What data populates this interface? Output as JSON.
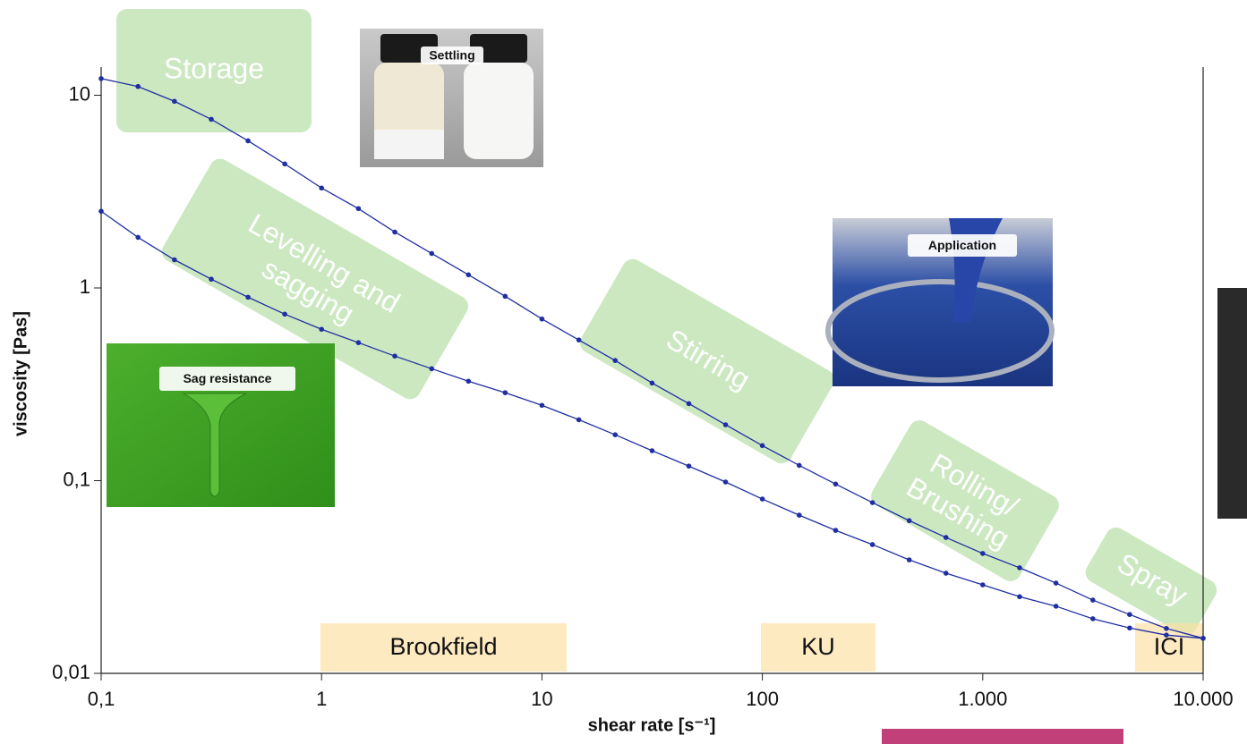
{
  "chart_data": {
    "type": "line",
    "x_label": "shear rate [s⁻¹]",
    "y_label": "viscosity  [Pas]",
    "log_x": true,
    "log_y": true,
    "markers": true,
    "x": [
      0.1,
      0.147,
      0.215,
      0.316,
      0.464,
      0.681,
      1,
      1.47,
      2.15,
      3.16,
      4.64,
      6.81,
      10,
      14.7,
      21.5,
      31.6,
      46.4,
      68.1,
      100,
      147,
      215,
      316,
      464,
      681,
      1000,
      1470,
      2150,
      3160,
      4640,
      6810,
      10000
    ],
    "series": [
      {
        "color": "#1f2fa3",
        "values": [
          12.2,
          11.1,
          9.3,
          7.5,
          5.8,
          4.4,
          3.3,
          2.58,
          1.95,
          1.51,
          1.17,
          0.905,
          0.69,
          0.537,
          0.42,
          0.321,
          0.251,
          0.195,
          0.152,
          0.12,
          0.096,
          0.0769,
          0.062,
          0.0507,
          0.0419,
          0.0353,
          0.0294,
          0.024,
          0.0202,
          0.0171,
          0.0152
        ]
      },
      {
        "color": "#1f2fa3",
        "values": [
          2.5,
          1.83,
          1.4,
          1.11,
          0.895,
          0.731,
          0.61,
          0.52,
          0.443,
          0.381,
          0.328,
          0.286,
          0.246,
          0.207,
          0.173,
          0.143,
          0.119,
          0.0984,
          0.0803,
          0.0662,
          0.0552,
          0.0466,
          0.0388,
          0.0331,
          0.0288,
          0.025,
          0.0223,
          0.0192,
          0.0172,
          0.0158,
          0.0152
        ]
      }
    ],
    "xlim": [
      0.1,
      10000
    ],
    "ylim": [
      0.01,
      14
    ],
    "xticks": [
      {
        "value": 0.1,
        "label": "0,1"
      },
      1,
      10,
      100,
      {
        "value": 1000,
        "label": "1.000"
      },
      {
        "value": 10000,
        "label": "10.000"
      }
    ],
    "yticks": [
      {
        "value": 0.01,
        "label": "0,01"
      },
      {
        "value": 0.1,
        "label": "0,1"
      },
      1,
      10
    ],
    "phases": [
      [
        "Storage"
      ],
      [
        "Levelling  and",
        "sagging"
      ],
      [
        "Stirring"
      ],
      [
        "Rolling/",
        "Brushing"
      ],
      [
        "Spray"
      ]
    ],
    "methods": [
      "Brookfield",
      "KU",
      "ICI"
    ],
    "photos": [
      "Settling",
      "Sag resistance",
      "Application"
    ]
  }
}
